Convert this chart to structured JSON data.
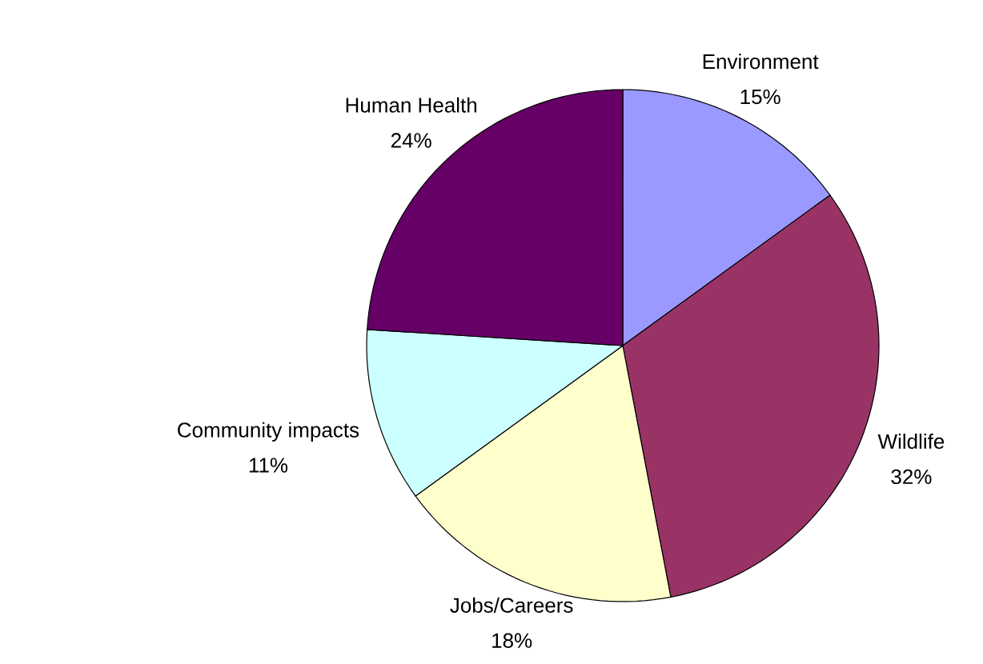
{
  "chart_data": {
    "type": "pie",
    "categories": [
      "Environment",
      "Wildlife",
      "Jobs/Careers",
      "Community impacts",
      "Human Health"
    ],
    "values": [
      15,
      32,
      18,
      11,
      24
    ],
    "value_labels": [
      "15%",
      "32%",
      "18%",
      "11%",
      "24%"
    ],
    "colors": [
      "#9999ff",
      "#993366",
      "#ffffcc",
      "#ccffff",
      "#660066"
    ]
  }
}
